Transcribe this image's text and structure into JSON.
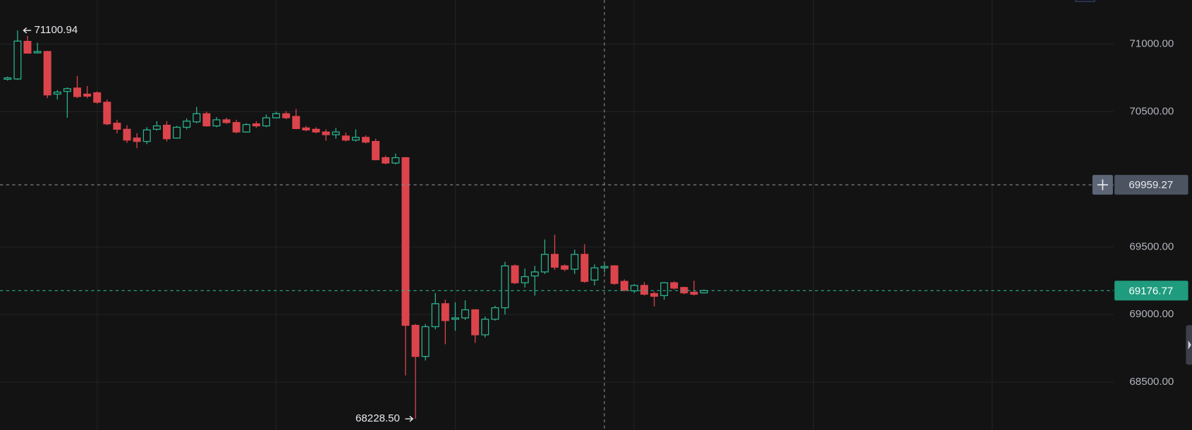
{
  "chart_data": {
    "type": "candlestick",
    "open": [
      70740,
      70742,
      71020,
      70935,
      70945,
      70630,
      70650,
      70675,
      70630,
      70640,
      70570,
      70415,
      70370,
      70305,
      70280,
      70370,
      70400,
      70305,
      70385,
      70425,
      70485,
      70395,
      70440,
      70420,
      70350,
      70410,
      70395,
      70455,
      70485,
      70465,
      70380,
      70370,
      70350,
      70330,
      70320,
      70290,
      70310,
      70280,
      70160,
      70120,
      70160,
      68920,
      68690,
      68910,
      69080,
      68965,
      68975,
      69035,
      68850,
      68965,
      69050,
      69360,
      69235,
      69285,
      69315,
      69445,
      69360,
      69335,
      69445,
      69255,
      69345,
      69360,
      69245,
      69175,
      69215,
      69155,
      69140,
      69235,
      69200,
      69165,
      69160
    ],
    "high": [
      70760,
      71100.94,
      71060,
      71010,
      70950,
      70660,
      70680,
      70765,
      70690,
      70650,
      70590,
      70440,
      70400,
      70340,
      70385,
      70430,
      70430,
      70395,
      70450,
      70535,
      70500,
      70460,
      70455,
      70440,
      70415,
      70430,
      70480,
      70500,
      70505,
      70520,
      70395,
      70385,
      70370,
      70380,
      70345,
      70370,
      70325,
      70300,
      70175,
      70190,
      70165,
      68930,
      68930,
      69160,
      69110,
      69090,
      69105,
      69040,
      68985,
      69065,
      69390,
      69370,
      69340,
      69360,
      69555,
      69590,
      69370,
      69480,
      69520,
      69370,
      69375,
      69365,
      69260,
      69225,
      69240,
      69170,
      69240,
      69245,
      69205,
      69250,
      69185
    ],
    "low": [
      70730,
      70735,
      70930,
      70930,
      70600,
      70590,
      70455,
      70600,
      70600,
      70560,
      70400,
      70340,
      70270,
      70230,
      70260,
      70360,
      70280,
      70300,
      70370,
      70415,
      70390,
      70385,
      70410,
      70340,
      70345,
      70380,
      70385,
      70450,
      70445,
      70370,
      70355,
      70340,
      70285,
      70300,
      70280,
      70280,
      70265,
      70140,
      70110,
      70110,
      68550,
      68228.5,
      68660,
      68890,
      68780,
      68880,
      68960,
      68790,
      68830,
      68955,
      69000,
      69225,
      69200,
      69140,
      69300,
      69330,
      69320,
      69300,
      69235,
      69215,
      69310,
      69220,
      69170,
      69160,
      69140,
      69060,
      69110,
      69185,
      69150,
      69140,
      69155
    ],
    "close": [
      70750,
      71022,
      70933,
      70945,
      70624,
      70645,
      70670,
      70612,
      70615,
      70570,
      70410,
      70370,
      70290,
      70280,
      70365,
      70395,
      70300,
      70385,
      70430,
      70485,
      70395,
      70440,
      70420,
      70350,
      70405,
      70395,
      70455,
      70485,
      70455,
      70375,
      70365,
      70350,
      70330,
      70350,
      70290,
      70310,
      70275,
      70145,
      70120,
      70160,
      68920,
      68690,
      68910,
      69080,
      68955,
      68975,
      69035,
      68850,
      68965,
      69050,
      69360,
      69235,
      69280,
      69315,
      69445,
      69350,
      69335,
      69445,
      69245,
      69345,
      69355,
      69230,
      69180,
      69215,
      69150,
      69135,
      69235,
      69195,
      69160,
      69150,
      69176.77
    ],
    "up_color": "#2ab28e",
    "down_color": "#dc444c",
    "ylim": [
      68146,
      71326
    ],
    "yticks": [
      {
        "value": 68500,
        "label": "68500.00"
      },
      {
        "value": 69000,
        "label": "69000.00"
      },
      {
        "value": 69500,
        "label": "69500.00"
      },
      {
        "value": 70500,
        "label": "70500.00"
      },
      {
        "value": 71000,
        "label": "71000.00"
      }
    ],
    "grid": true,
    "high_label": "71100.94",
    "low_label": "68228.50",
    "crosshair_price": 69959.27,
    "last_price": 69176.77
  }
}
